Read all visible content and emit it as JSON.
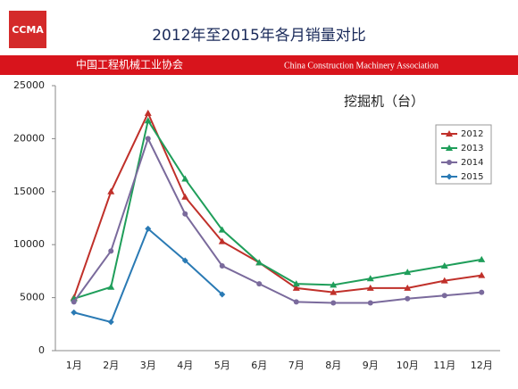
{
  "header": {
    "logo": "CCMA",
    "title": "2012年至2015年各月销量对比",
    "org_cn": "中国工程机械工业协会",
    "org_en": "China Construction Machinery Association"
  },
  "chart_data": {
    "type": "line",
    "annotation": "挖掘机（台）",
    "categories": [
      "1月",
      "2月",
      "3月",
      "4月",
      "5月",
      "6月",
      "7月",
      "8月",
      "9月",
      "10月",
      "11月",
      "12月"
    ],
    "ylim": [
      0,
      25000
    ],
    "yticks": [
      0,
      5000,
      10000,
      15000,
      20000,
      25000
    ],
    "grid": false,
    "legend": "right",
    "series": [
      {
        "name": "2012",
        "color": "#c0302a",
        "marker": "triangle",
        "values": [
          5000,
          15000,
          22400,
          14500,
          10300,
          8300,
          5900,
          5500,
          5900,
          5900,
          6600,
          7100
        ]
      },
      {
        "name": "2013",
        "color": "#1f9e5a",
        "marker": "triangle",
        "values": [
          4900,
          6000,
          21700,
          16200,
          11400,
          8300,
          6300,
          6200,
          6800,
          7400,
          8000,
          8600
        ]
      },
      {
        "name": "2014",
        "color": "#7a6a9c",
        "marker": "circle",
        "values": [
          4600,
          9400,
          20000,
          12900,
          8000,
          6300,
          4600,
          4500,
          4500,
          4900,
          5200,
          5500
        ]
      },
      {
        "name": "2015",
        "color": "#2a7ab4",
        "marker": "diamond",
        "values": [
          3600,
          2700,
          11500,
          8500,
          5300,
          null,
          null,
          null,
          null,
          null,
          null,
          null
        ]
      }
    ]
  }
}
